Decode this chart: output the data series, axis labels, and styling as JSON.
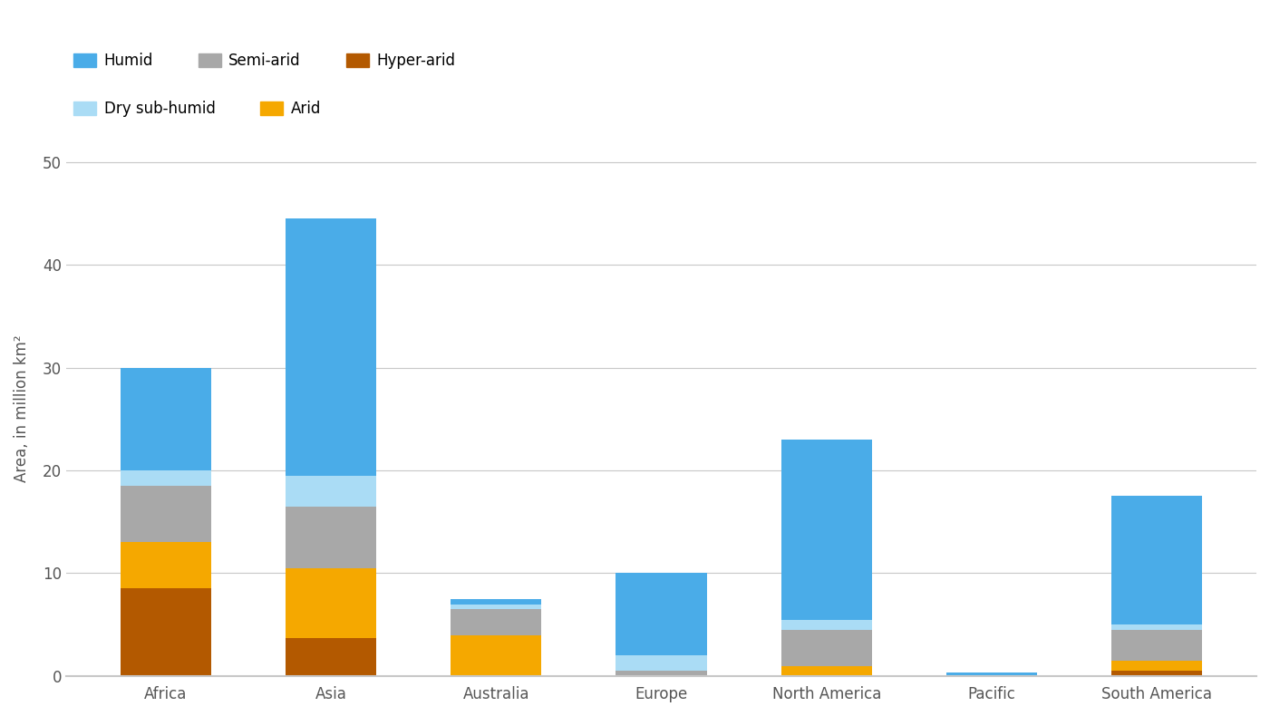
{
  "categories": [
    "Africa",
    "Asia",
    "Australia",
    "Europe",
    "North America",
    "Pacific",
    "South America"
  ],
  "series": {
    "Hyper-arid": [
      8.5,
      3.7,
      0.0,
      0.0,
      0.05,
      0.0,
      0.5
    ],
    "Arid": [
      4.5,
      6.8,
      4.0,
      0.0,
      0.95,
      0.0,
      1.0
    ],
    "Semi-arid": [
      5.5,
      6.0,
      2.5,
      0.5,
      3.5,
      0.0,
      3.0
    ],
    "Dry sub-humid": [
      1.5,
      3.0,
      0.5,
      1.5,
      1.0,
      0.0,
      0.5
    ],
    "Humid": [
      10.0,
      25.0,
      0.5,
      8.0,
      17.5,
      0.3,
      12.5
    ]
  },
  "colors": {
    "Humid": "#4AACE8",
    "Dry sub-humid": "#AADCF5",
    "Semi-arid": "#A8A8A8",
    "Arid": "#F5A800",
    "Hyper-arid": "#B35900"
  },
  "ylabel": "Area, in million km²",
  "ylim": [
    0,
    52
  ],
  "yticks": [
    0,
    10,
    20,
    30,
    40,
    50
  ],
  "background_color": "#FFFFFF",
  "grid_color": "#C8C8C8",
  "bar_width": 0.55,
  "stack_order": [
    "Hyper-arid",
    "Arid",
    "Semi-arid",
    "Dry sub-humid",
    "Humid"
  ],
  "legend_row1": [
    "Humid",
    "Semi-arid",
    "Hyper-arid"
  ],
  "legend_row2": [
    "Dry sub-humid",
    "Arid"
  ]
}
